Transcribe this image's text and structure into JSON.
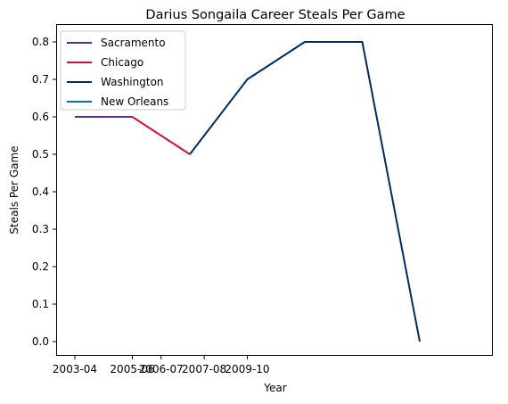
{
  "chart_data": {
    "type": "line",
    "title": "Darius Songaila Career Steals Per Game",
    "xlabel": "Year",
    "ylabel": "Steals Per Game",
    "ylim": [
      0.0,
      0.8
    ],
    "yticks": [
      "0.0",
      "0.1",
      "0.2",
      "0.3",
      "0.4",
      "0.5",
      "0.6",
      "0.7",
      "0.8"
    ],
    "xticks": [
      "2003-04",
      "2005-06",
      "2006-07",
      "2007-08",
      "2009-10"
    ],
    "grid": false,
    "legend_position": "top-left",
    "series": [
      {
        "name": "Sacramento",
        "color": "#5a2d81",
        "points": [
          {
            "x": 0,
            "y": 0.6
          },
          {
            "x": 1,
            "y": 0.6
          }
        ]
      },
      {
        "name": "Chicago",
        "color": "#ce1141",
        "points": [
          {
            "x": 1,
            "y": 0.6
          },
          {
            "x": 2,
            "y": 0.5
          }
        ]
      },
      {
        "name": "Washington",
        "color": "#002b5c",
        "points": [
          {
            "x": 2,
            "y": 0.5
          },
          {
            "x": 3,
            "y": 0.7
          },
          {
            "x": 4,
            "y": 0.8
          },
          {
            "x": 5,
            "y": 0.8
          },
          {
            "x": 6,
            "y": 0.0
          }
        ]
      },
      {
        "name": "New Orleans",
        "color": "#0c6fa8",
        "points": []
      }
    ]
  }
}
